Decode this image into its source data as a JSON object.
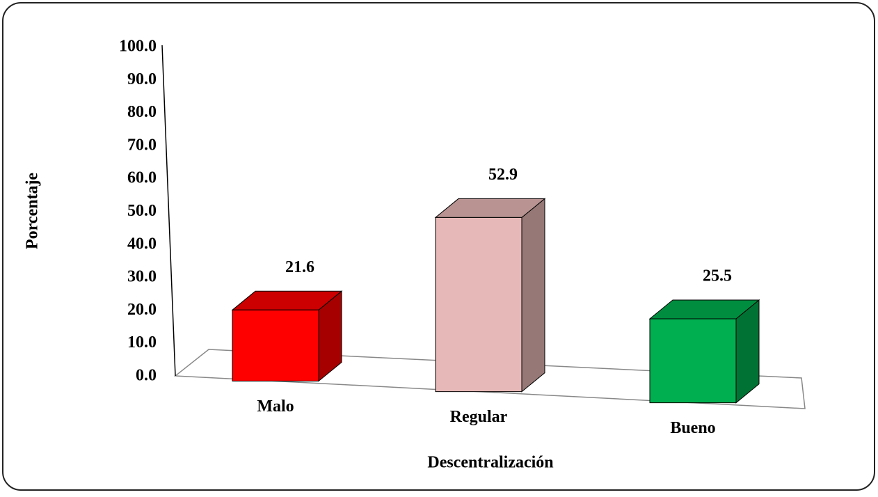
{
  "chart_data": {
    "type": "bar3d",
    "x_label": "Descentralización",
    "y_label": "Porcentaje",
    "categories": [
      "Malo",
      "Regular",
      "Bueno"
    ],
    "values": [
      21.6,
      52.9,
      25.5
    ],
    "colors": [
      "#ff0000",
      "#e6b8b7",
      "#00b050"
    ],
    "ylim": [
      0,
      100
    ],
    "yticks": [
      {
        "value": 0,
        "label": "0.0"
      },
      {
        "value": 10,
        "label": "10.0"
      },
      {
        "value": 20,
        "label": "20.0"
      },
      {
        "value": 30,
        "label": "30.0"
      },
      {
        "value": 40,
        "label": "40.0"
      },
      {
        "value": 50,
        "label": "50.0"
      },
      {
        "value": 60,
        "label": "60.0"
      },
      {
        "value": 70,
        "label": "70.0"
      },
      {
        "value": 80,
        "label": "80.0"
      },
      {
        "value": 90,
        "label": "90.0"
      },
      {
        "value": 100,
        "label": "100.0"
      }
    ]
  }
}
